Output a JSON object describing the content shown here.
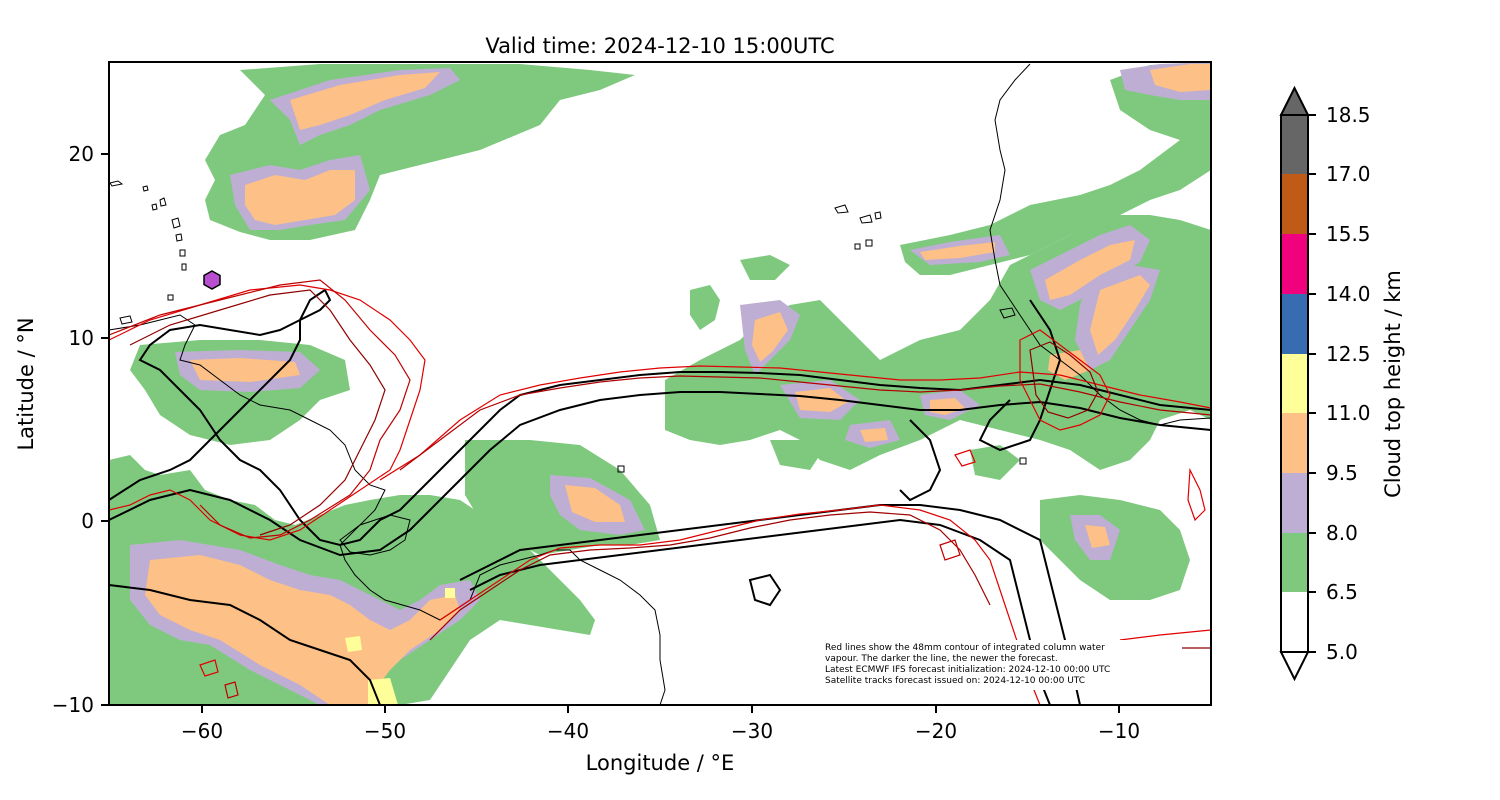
{
  "title": "Valid time: 2024-12-10 15:00UTC",
  "xaxis": {
    "label": "Longitude / °E",
    "ticks": [
      "−60",
      "−50",
      "−40",
      "−30",
      "−20",
      "−10"
    ],
    "range": [
      -65,
      -5
    ]
  },
  "yaxis": {
    "label": "Latitude / °N",
    "ticks": [
      "20",
      "10",
      "0",
      "−10"
    ],
    "range": [
      -10,
      25
    ]
  },
  "colorbar": {
    "label": "Cloud top height / km",
    "levels": [
      "5.0",
      "6.5",
      "8.0",
      "9.5",
      "11.0",
      "12.5",
      "14.0",
      "15.5",
      "17.0",
      "18.5"
    ],
    "colors": [
      "#ffffff",
      "#7fc97f",
      "#beaed4",
      "#fdc086",
      "#ffff99",
      "#386cb0",
      "#f0027f",
      "#bf5b17",
      "#666666"
    ],
    "extend": "both"
  },
  "note_lines": [
    "Red lines show the 48mm contour of integrated column water",
    "vapour. The darker the line, the newer the forecast.",
    "Latest ECMWF IFS forecast initialization: 2024-12-10 00:00 UTC",
    "Satellite tracks forecast issued on: 2024-12-10 00:00 UTC"
  ],
  "marker": {
    "type": "hexagon",
    "color": "#b84fd0",
    "lon": -59.7,
    "lat": 13.1
  },
  "chart_data": {
    "type": "heatmap",
    "title": "Valid time: 2024-12-10 15:00UTC",
    "xlabel": "Longitude / °E",
    "ylabel": "Latitude / °N",
    "xlim": [
      -65,
      -5
    ],
    "ylim": [
      -10,
      25
    ],
    "field": "Cloud top height / km",
    "cloud_regions": [
      {
        "lon": [
          -62,
          -50
        ],
        "lat": [
          15,
          25
        ],
        "class": "6.5-8.0"
      },
      {
        "lon": [
          -57,
          -49
        ],
        "lat": [
          17,
          24
        ],
        "class": "9.5-11.0"
      },
      {
        "lon": [
          -65,
          -46
        ],
        "lat": [
          -10,
          4
        ],
        "class": "6.5-8.0"
      },
      {
        "lon": [
          -62,
          -49
        ],
        "lat": [
          -7,
          -1
        ],
        "class": "9.5-11.0"
      },
      {
        "lon": [
          -52,
          -50
        ],
        "lat": [
          -10,
          -6
        ],
        "class": "11.0-12.5"
      },
      {
        "lon": [
          -63,
          -51
        ],
        "lat": [
          6,
          10
        ],
        "class": "6.5-8.0"
      },
      {
        "lon": [
          -60,
          -54
        ],
        "lat": [
          7,
          9
        ],
        "class": "9.5-11.0"
      },
      {
        "lon": [
          -45,
          -36
        ],
        "lat": [
          -4,
          4
        ],
        "class": "6.5-8.0"
      },
      {
        "lon": [
          -41,
          -38
        ],
        "lat": [
          0,
          2
        ],
        "class": "9.5-11.0"
      },
      {
        "lon": [
          -40,
          -5
        ],
        "lat": [
          3,
          16
        ],
        "class": "6.5-8.0"
      },
      {
        "lon": [
          -30,
          -20
        ],
        "lat": [
          4,
          11
        ],
        "class": "9.5-11.0"
      },
      {
        "lon": [
          -23,
          -5
        ],
        "lat": [
          11,
          25
        ],
        "class": "6.5-8.0"
      },
      {
        "lon": [
          -21,
          -8
        ],
        "lat": [
          13,
          24
        ],
        "class": "9.5-11.0"
      },
      {
        "lon": [
          -12,
          -5
        ],
        "lat": [
          -7,
          2
        ],
        "class": "6.5-8.0"
      }
    ]
  }
}
